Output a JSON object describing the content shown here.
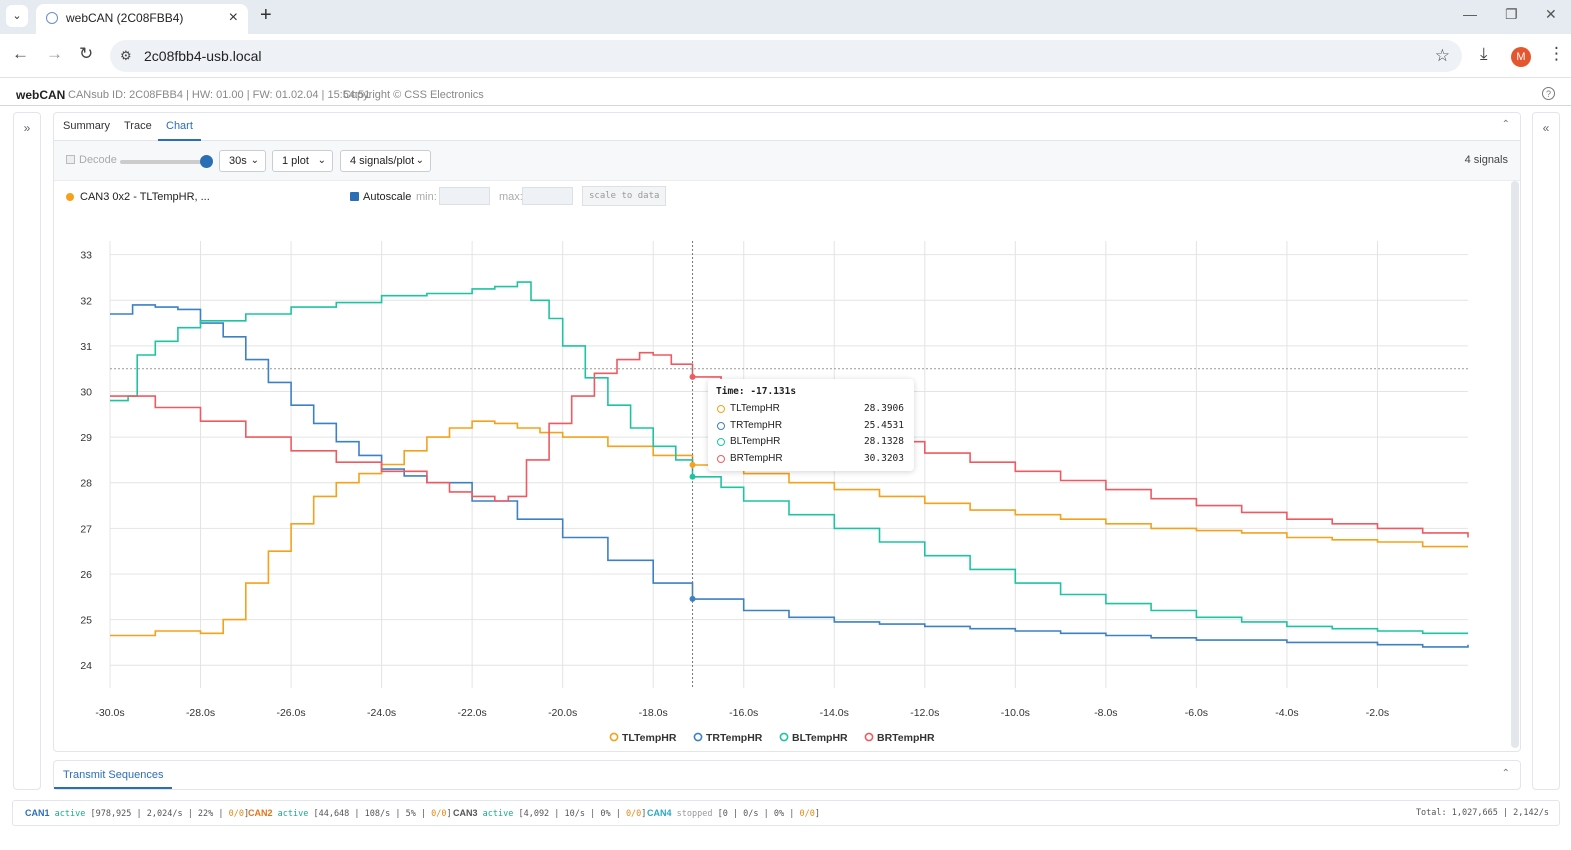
{
  "browser": {
    "tab_title": "webCAN (2C08FBB4)",
    "url": "2c08fbb4-usb.local",
    "avatar_letter": "M"
  },
  "app": {
    "brand": "webCAN",
    "meta": "CANsub ID: 2C08FBB4 | HW: 01.00 | FW: 01.02.04 | 15:54:51",
    "copyright": "Copyright © CSS Electronics"
  },
  "tabs": [
    "Summary",
    "Trace",
    "Chart"
  ],
  "active_tab": "Chart",
  "controls": {
    "decode_label": "Decode",
    "window": "30s",
    "plots": "1 plot",
    "signals_per_plot": "4 signals/plot",
    "signal_count": "4 signals"
  },
  "plot_header": {
    "name": "CAN3 0x2 - TLTempHR, ...",
    "autoscale_label": "Autoscale",
    "min_label": "min:",
    "max_label": "max:",
    "scale_button": "scale to data"
  },
  "tooltip": {
    "title": "Time: -17.131s",
    "rows": [
      {
        "name": "TLTempHR",
        "value": "28.3906"
      },
      {
        "name": "TRTempHR",
        "value": "25.4531"
      },
      {
        "name": "BLTempHR",
        "value": "28.1328"
      },
      {
        "name": "BRTempHR",
        "value": "30.3203"
      }
    ]
  },
  "chart_data": {
    "type": "line",
    "xlim": [
      -30,
      0
    ],
    "ylim": [
      23.5,
      33.3
    ],
    "x_ticks": [
      "-30.0s",
      "-28.0s",
      "-26.0s",
      "-24.0s",
      "-22.0s",
      "-20.0s",
      "-18.0s",
      "-16.0s",
      "-14.0s",
      "-12.0s",
      "-10.0s",
      "-8.0s",
      "-6.0s",
      "-4.0s",
      "-2.0s"
    ],
    "y_ticks": [
      24,
      25,
      26,
      27,
      28,
      29,
      30,
      31,
      32,
      33
    ],
    "cursor_x": -17.131,
    "cursor_y": 30.5,
    "grid": true,
    "legend_position": "bottom-center",
    "series": [
      {
        "name": "TLTempHR",
        "color": "#f5a11a",
        "x": [
          -30,
          -29,
          -28.5,
          -28,
          -27.5,
          -27,
          -26.5,
          -26,
          -25.5,
          -25,
          -24.5,
          -24,
          -23.5,
          -23,
          -22.5,
          -22,
          -21.5,
          -21,
          -20.5,
          -20,
          -19,
          -18,
          -17.131,
          -16,
          -15,
          -14,
          -13,
          -12,
          -11,
          -10,
          -9,
          -8,
          -7,
          -6,
          -5,
          -4,
          -3,
          -2,
          -1,
          0
        ],
        "y": [
          24.65,
          24.75,
          24.75,
          24.7,
          25.0,
          25.8,
          26.5,
          27.1,
          27.7,
          28.0,
          28.2,
          28.4,
          28.7,
          29.0,
          29.2,
          29.35,
          29.3,
          29.2,
          29.1,
          29.0,
          28.8,
          28.6,
          28.39,
          28.2,
          28.0,
          27.85,
          27.7,
          27.55,
          27.4,
          27.3,
          27.2,
          27.1,
          27.0,
          26.95,
          26.9,
          26.8,
          26.75,
          26.7,
          26.6,
          26.6
        ]
      },
      {
        "name": "TRTempHR",
        "color": "#3d80c4",
        "x": [
          -30,
          -29.5,
          -29,
          -28.5,
          -28,
          -27.5,
          -27,
          -26.5,
          -26,
          -25.5,
          -25,
          -24.5,
          -24,
          -23.5,
          -23,
          -22,
          -21,
          -20,
          -19,
          -18,
          -17.131,
          -16,
          -15,
          -14,
          -13,
          -12,
          -11,
          -10,
          -9,
          -8,
          -7,
          -6,
          -5,
          -4,
          -3,
          -2,
          -1,
          0
        ],
        "y": [
          31.7,
          31.9,
          31.85,
          31.8,
          31.5,
          31.2,
          30.7,
          30.2,
          29.7,
          29.3,
          28.9,
          28.6,
          28.3,
          28.15,
          28.0,
          27.6,
          27.2,
          26.8,
          26.3,
          25.8,
          25.45,
          25.2,
          25.05,
          24.95,
          24.9,
          24.85,
          24.8,
          24.75,
          24.7,
          24.65,
          24.6,
          24.55,
          24.55,
          24.5,
          24.5,
          24.45,
          24.4,
          24.45
        ]
      },
      {
        "name": "BLTempHR",
        "color": "#1ec4a0",
        "x": [
          -30,
          -29.6,
          -29.4,
          -29,
          -28.5,
          -28,
          -27,
          -26,
          -25,
          -24,
          -23,
          -22,
          -21.5,
          -21,
          -20.7,
          -20.3,
          -20,
          -19.5,
          -19,
          -18.5,
          -18,
          -17.5,
          -17.131,
          -16.5,
          -16,
          -15,
          -14,
          -13,
          -12,
          -11,
          -10,
          -9,
          -8,
          -7,
          -6,
          -5,
          -4,
          -3,
          -2,
          -1,
          0
        ],
        "y": [
          29.8,
          29.9,
          30.8,
          31.1,
          31.4,
          31.55,
          31.7,
          31.85,
          31.95,
          32.1,
          32.15,
          32.25,
          32.3,
          32.4,
          32.0,
          31.6,
          31.0,
          30.3,
          29.7,
          29.2,
          28.8,
          28.5,
          28.13,
          27.9,
          27.6,
          27.3,
          27.0,
          26.7,
          26.4,
          26.1,
          25.8,
          25.55,
          25.35,
          25.2,
          25.05,
          24.95,
          24.85,
          24.8,
          24.75,
          24.7,
          24.7
        ]
      },
      {
        "name": "BRTempHR",
        "color": "#ef5a62",
        "x": [
          -30,
          -29,
          -28,
          -27,
          -26,
          -25,
          -24,
          -23,
          -22.5,
          -22,
          -21.5,
          -21.2,
          -20.8,
          -20.3,
          -19.8,
          -19.3,
          -18.8,
          -18.3,
          -18,
          -17.6,
          -17.131,
          -16.5,
          -16,
          -15,
          -14,
          -13,
          -12,
          -11,
          -10,
          -9,
          -8,
          -7,
          -6,
          -5,
          -4,
          -3,
          -2,
          -1,
          0
        ],
        "y": [
          29.9,
          29.65,
          29.35,
          29.0,
          28.7,
          28.45,
          28.25,
          28.0,
          27.8,
          27.7,
          27.6,
          27.7,
          28.5,
          29.3,
          29.9,
          30.4,
          30.7,
          30.85,
          30.8,
          30.6,
          30.32,
          30.1,
          29.8,
          29.4,
          29.1,
          28.9,
          28.65,
          28.45,
          28.25,
          28.05,
          27.85,
          27.65,
          27.5,
          27.35,
          27.2,
          27.1,
          27.0,
          26.9,
          26.8
        ]
      }
    ]
  },
  "transmit_tab": "Transmit Sequences",
  "status": {
    "channels": [
      {
        "name": "CAN1",
        "color": "#2a6fb5",
        "state": "active",
        "frames": "978,925",
        "rate": "2,024/s",
        "load": "22%",
        "errors": "0/0"
      },
      {
        "name": "CAN2",
        "color": "#e0761a",
        "state": "active",
        "frames": "44,648",
        "rate": "108/s",
        "load": "5%",
        "errors": "0/0"
      },
      {
        "name": "CAN3",
        "color": "#555555",
        "state": "active",
        "frames": "4,092",
        "rate": "10/s",
        "load": "0%",
        "errors": "0/0"
      },
      {
        "name": "CAN4",
        "color": "#2aa8c4",
        "state": "stopped",
        "frames": "0",
        "rate": "0/s",
        "load": "0%",
        "errors": "0/0"
      }
    ],
    "total": "Total: 1,027,665 | 2,142/s"
  }
}
